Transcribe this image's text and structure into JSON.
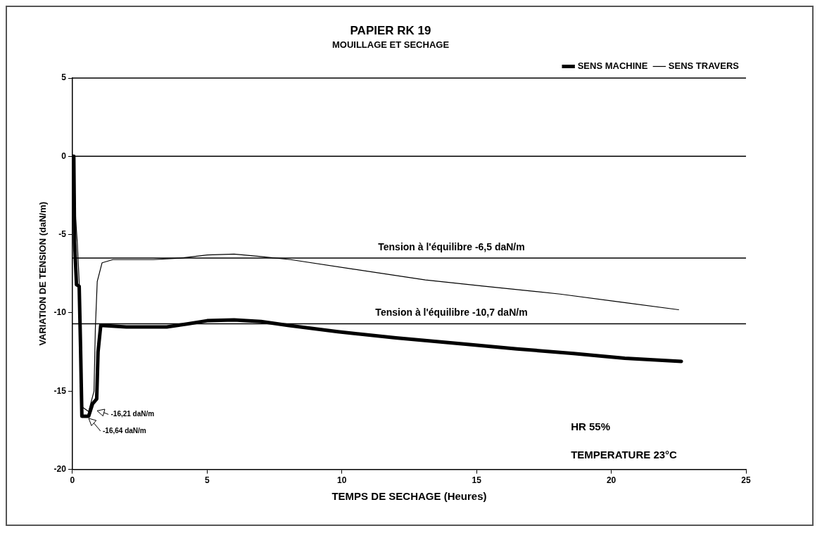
{
  "chart_data": {
    "type": "line",
    "title": "PAPIER RK 19",
    "subtitle": "MOUILLAGE ET SECHAGE",
    "xlabel": "TEMPS DE SECHAGE (Heures)",
    "ylabel": "VARIATION DE TENSION (daN/m)",
    "xlim": [
      0,
      25
    ],
    "xticks": [
      0,
      5,
      10,
      15,
      20,
      25
    ],
    "ylim": [
      -20,
      5
    ],
    "yticks": [
      -20,
      -15,
      -10,
      -5,
      0,
      5
    ],
    "grid": false,
    "legend": "top right",
    "marker": "none",
    "line_style": "solid",
    "series": [
      {
        "name": "SENS MACHINE",
        "color": "#000000",
        "x": [
          0,
          0.05,
          0.08,
          0.15,
          0.25,
          0.3,
          0.35,
          0.6,
          0.75,
          0.9,
          0.95,
          1.05,
          2,
          3.5,
          4.3,
          5,
          6,
          7,
          8,
          9.85,
          12,
          14.6,
          16.5,
          18.6,
          20.5,
          22.6
        ],
        "values": [
          0,
          0,
          -5.5,
          -8.2,
          -8.3,
          -12.1,
          -16.6,
          -16.6,
          -15.8,
          -15.5,
          -12.5,
          -10.8,
          -10.9,
          -10.9,
          -10.7,
          -10.5,
          -10.45,
          -10.55,
          -10.8,
          -11.2,
          -11.6,
          -12.0,
          -12.3,
          -12.6,
          -12.9,
          -13.1
        ]
      },
      {
        "name": "SENS TRAVERS",
        "color": "#000000",
        "x": [
          0,
          0.05,
          0.12,
          0.18,
          0.25,
          0.35,
          0.6,
          0.8,
          0.85,
          0.92,
          1.1,
          1.5,
          3,
          4,
          5,
          6,
          7,
          8.1,
          10.4,
          13.1,
          15.3,
          18.1,
          20.3,
          22.5
        ],
        "values": [
          0,
          0,
          -4,
          -5.5,
          -8,
          -16,
          -16.3,
          -15,
          -11,
          -8,
          -6.8,
          -6.6,
          -6.6,
          -6.5,
          -6.3,
          -6.25,
          -6.4,
          -6.6,
          -7.2,
          -7.9,
          -8.3,
          -8.8,
          -9.3,
          -9.8
        ]
      }
    ],
    "ref_lines": [
      {
        "axis": "y",
        "value": 0
      },
      {
        "axis": "y",
        "value": -6.5,
        "label": "Tension à l'équilibre -6,5 daN/m"
      },
      {
        "axis": "y",
        "value": -10.7,
        "label": "Tension à l'équilibre -10,7 daN/m"
      }
    ],
    "annotations": [
      {
        "text": "-16,21 daN/m",
        "x": 0.85,
        "y": -16.21
      },
      {
        "text": "-16,64 daN/m",
        "x": 0.55,
        "y": -16.64
      },
      "HR 55%",
      "TEMPERATURE 23°C"
    ]
  }
}
